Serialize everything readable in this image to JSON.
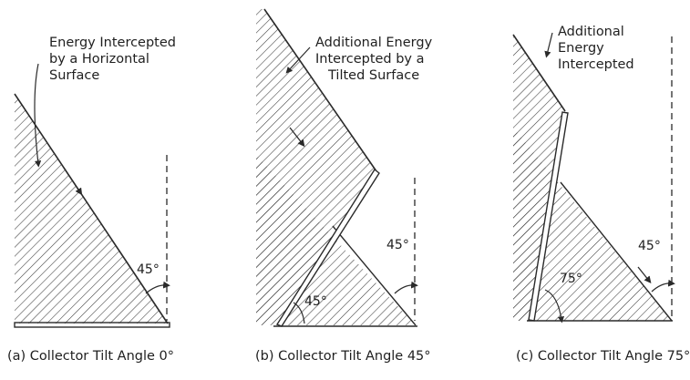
{
  "panels": [
    {
      "id": "a",
      "annotation": [
        "Energy Intercepted",
        "by a Horizontal",
        "Surface"
      ],
      "angle_sun": "45°",
      "caption": "(a) Collector Tilt Angle 0°"
    },
    {
      "id": "b",
      "annotation": [
        "Additional  Energy",
        "Intercepted by a",
        "Tilted Surface"
      ],
      "angle_sun": "45°",
      "angle_tilt": "45°",
      "caption": "(b) Collector Tilt Angle 45°"
    },
    {
      "id": "c",
      "annotation": [
        "Additional",
        "Energy",
        "Intercepted"
      ],
      "angle_sun": "45°",
      "angle_tilt": "75°",
      "caption": "(c) Collector Tilt Angle 75°"
    }
  ],
  "colors": {
    "ink": "#2a2a2a",
    "hatch": "#3a3a3a",
    "background": "#ffffff"
  }
}
